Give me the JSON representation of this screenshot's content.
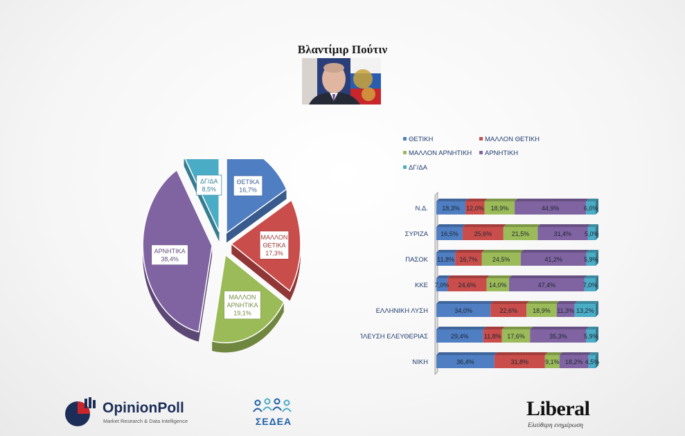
{
  "header": {
    "title": "Βλαντίμιρ Πούτιν"
  },
  "colors": {
    "positive": "#4f7ec2",
    "rather_positive": "#c94d4b",
    "rather_negative": "#9bbb59",
    "negative": "#8064a2",
    "dk_na": "#4bacc6"
  },
  "chart_data": [
    {
      "type": "pie",
      "slices": [
        {
          "label": "ΘΕΤΙΚΑ",
          "value": 16.7,
          "value_label": "16,7%"
        },
        {
          "label": "ΜΑΛΛΟΝ ΘΕΤΙΚΑ",
          "value": 17.3,
          "value_label": "17,3%"
        },
        {
          "label": "ΜΑΛΛΟΝ ΑΡΝΗΤΙΚΑ",
          "value": 19.1,
          "value_label": "19,1%"
        },
        {
          "label": "ΑΡΝΗΤΙΚΑ",
          "value": 38.4,
          "value_label": "38,4%"
        },
        {
          "label": "ΔΓ/ΔΑ",
          "value": 8.5,
          "value_label": "8,5%"
        }
      ]
    },
    {
      "type": "bar",
      "orientation": "horizontal",
      "stacked": true,
      "legend_position": "top",
      "categories": [
        "Ν.Δ.",
        "ΣΥΡΙΖΑ",
        "ΠΑΣΟΚ",
        "ΚΚΕ",
        "ΕΛΛΗΝΙΚΗ ΛΥΣΗ",
        "ΠΛΕΥΣΗ ΕΛΕΥΘΕΡΙΑΣ",
        "ΝΙΚΗ"
      ],
      "series": [
        {
          "name": "ΘΕΤΙΚΗ",
          "values": [
            18.3,
            16.5,
            11.8,
            7.0,
            34.0,
            29.4,
            36.4
          ],
          "labels": [
            "18,3%",
            "16,5%",
            "11,8%",
            "7,0%",
            "34,0%",
            "29,4%",
            "36,4%"
          ]
        },
        {
          "name": "ΜΑΛΛΟΝ ΘΕΤΙΚΗ",
          "values": [
            12.0,
            25.6,
            16.7,
            24.6,
            22.6,
            11.8,
            31.8
          ],
          "labels": [
            "12,0%",
            "25,6%",
            "16,7%",
            "24,6%",
            "22,6%",
            "11,8%",
            "31,8%"
          ]
        },
        {
          "name": "ΜΑΛΛΟΝ ΑΡΝΗΤΙΚΗ",
          "values": [
            18.9,
            21.5,
            24.5,
            14.0,
            18.9,
            17.6,
            9.1
          ],
          "labels": [
            "18,9%",
            "21,5%",
            "24,5%",
            "14,0%",
            "18,9%",
            "17,6%",
            "9,1%"
          ]
        },
        {
          "name": "ΑΡΝΗΤΙΚΗ",
          "values": [
            44.9,
            31.4,
            41.2,
            47.4,
            11.3,
            35.3,
            18.2
          ],
          "labels": [
            "44,9%",
            "31,4%",
            "41,2%",
            "47,4%",
            "11,3%",
            "35,3%",
            "18,2%"
          ]
        },
        {
          "name": "ΔΓ/ΔΑ",
          "values": [
            6.0,
            5.0,
            5.9,
            7.0,
            13.2,
            5.9,
            4.5
          ],
          "labels": [
            "6,0%",
            "5,0%",
            "5,9%",
            "7,0%",
            "13,2%",
            "5,9%",
            "4,5%"
          ]
        }
      ]
    }
  ],
  "footer": {
    "opinionpoll_name": "OpinionPoll",
    "opinionpoll_tagline": "Market Research & Data Intelligence",
    "sedea_name": "ΣΕΔΕΑ",
    "liberal_name": "Liberal",
    "liberal_tagline": "Ελεύθερη ενημέρωση"
  }
}
